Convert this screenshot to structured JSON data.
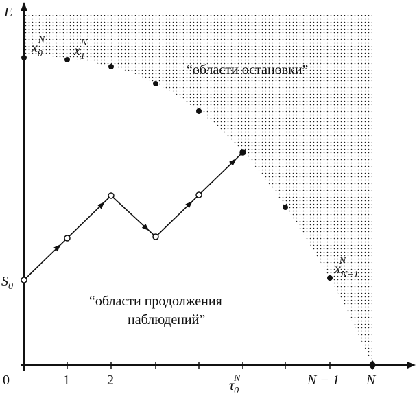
{
  "y_label": "E",
  "x_ticks": [
    "0",
    "1",
    "2",
    "N − 1",
    "N"
  ],
  "tau": {
    "base": "τ",
    "sub": "0",
    "sup": "N"
  },
  "start": {
    "base": "S",
    "sub": "0"
  },
  "points": [
    {
      "base": "x",
      "sub": "0",
      "sup": "N"
    },
    {
      "base": "x",
      "sub": "1",
      "sup": "N"
    },
    {
      "base": "x",
      "sub": "N−1",
      "sup": "N"
    }
  ],
  "regions": {
    "stop": "“области остановки”",
    "continue": [
      "“области продолжения",
      "наблюдений”"
    ]
  }
}
